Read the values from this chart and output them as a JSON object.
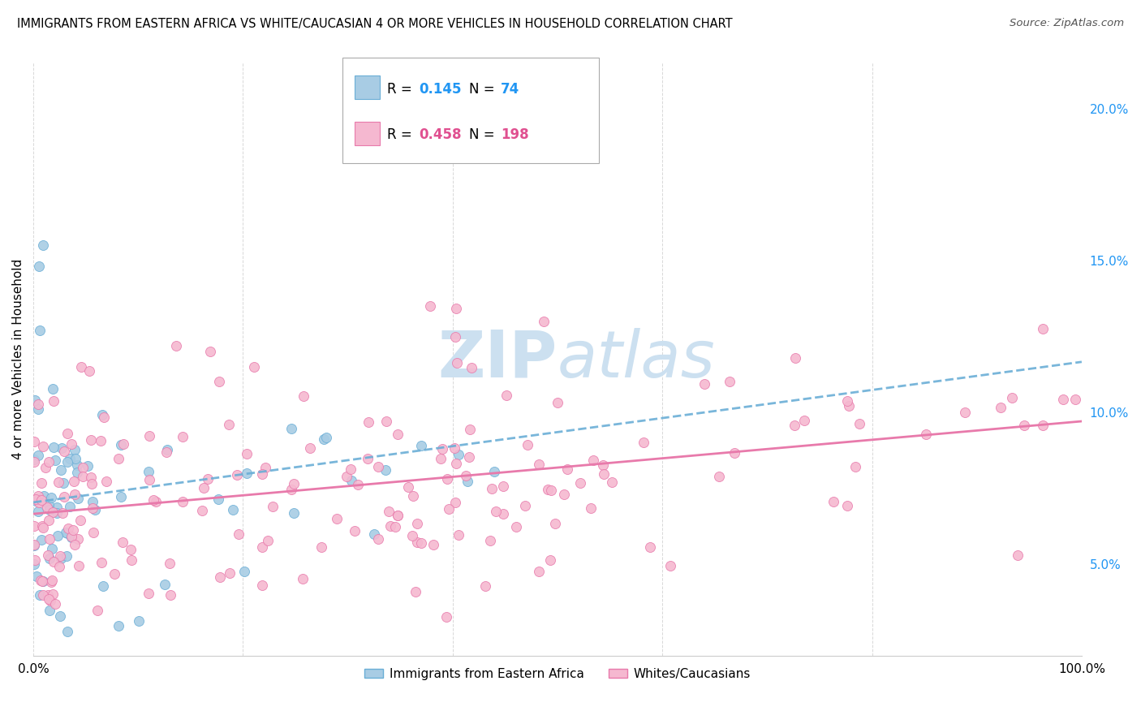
{
  "title": "IMMIGRANTS FROM EASTERN AFRICA VS WHITE/CAUCASIAN 4 OR MORE VEHICLES IN HOUSEHOLD CORRELATION CHART",
  "source": "Source: ZipAtlas.com",
  "ylabel": "4 or more Vehicles in Household",
  "xlim": [
    0,
    1.0
  ],
  "ylim": [
    0.02,
    0.215
  ],
  "y_ticks_right": [
    0.05,
    0.1,
    0.15,
    0.2
  ],
  "y_tick_labels_right": [
    "5.0%",
    "10.0%",
    "15.0%",
    "20.0%"
  ],
  "blue_R": 0.145,
  "blue_N": 74,
  "pink_R": 0.458,
  "pink_N": 198,
  "blue_color": "#a8cce4",
  "pink_color": "#f5b8d0",
  "blue_edge_color": "#6aaed6",
  "pink_edge_color": "#e87aab",
  "blue_line_color": "#6aaed6",
  "pink_line_color": "#e87aab",
  "watermark_zip": "ZIP",
  "watermark_atlas": "atlas",
  "watermark_color": "#cce0f0",
  "legend_blue_color": "#2196F3",
  "legend_pink_color": "#e05090"
}
